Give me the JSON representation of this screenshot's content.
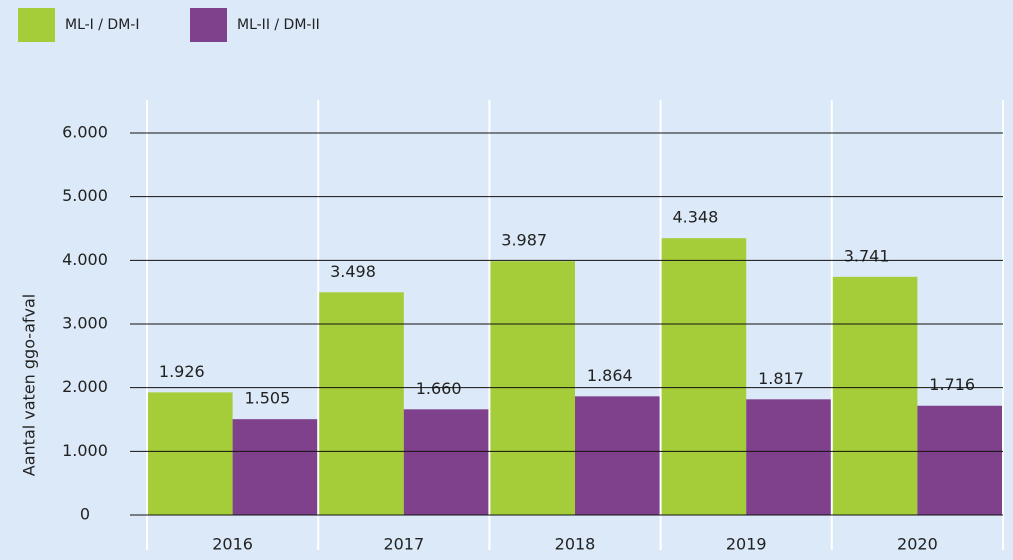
{
  "chart_data": {
    "type": "bar",
    "y_label": "Aantal vaten ggo-afval",
    "categories": [
      "2016",
      "2017",
      "2018",
      "2019",
      "2020"
    ],
    "series": [
      {
        "name": "ML-I / DM-I",
        "color": "#a5cd39",
        "values": [
          1926,
          3498,
          3987,
          4348,
          3741
        ],
        "value_labels": [
          "1.926",
          "3.498",
          "3.987",
          "4.348",
          "3.741"
        ]
      },
      {
        "name": "ML-II / DM-II",
        "color": "#80418c",
        "values": [
          1505,
          1660,
          1864,
          1817,
          1716
        ],
        "value_labels": [
          "1.505",
          "1.660",
          "1.864",
          "1.817",
          "1.716"
        ]
      }
    ],
    "ylim": [
      0,
      6000
    ],
    "yticks": [
      0,
      {
        "value": 1000,
        "label": "1.000"
      },
      {
        "value": 2000,
        "label": "2.000"
      },
      {
        "value": 3000,
        "label": "3.000"
      },
      {
        "value": 4000,
        "label": "4.000"
      },
      {
        "value": 5000,
        "label": "5.000"
      },
      {
        "value": 6000,
        "label": "6.000"
      }
    ],
    "grid": true
  }
}
